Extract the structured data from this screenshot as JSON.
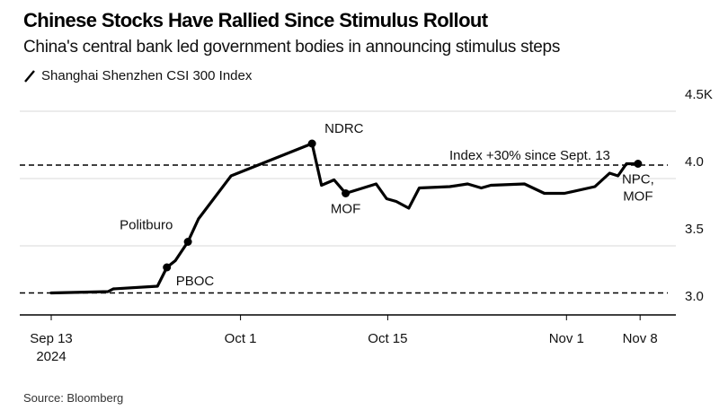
{
  "chart_data": {
    "type": "line",
    "title": "Chinese Stocks Have Rallied Since Stimulus Rollout",
    "subtitle": "China's central bank led government bodies in announcing stimulus steps",
    "legend": [
      {
        "name": "Shanghai Shenzhen CSI 300 Index",
        "marker": "line",
        "placement": "top-left"
      }
    ],
    "xlabel": "",
    "ylabel": "",
    "y_unit": "thousands",
    "ylim": [
      2.93,
      4.5
    ],
    "y_ticks": [
      {
        "value": 4.5,
        "label": "4.5K"
      },
      {
        "value": 4.0,
        "label": "4.0"
      },
      {
        "value": 3.5,
        "label": "3.5"
      },
      {
        "value": 3.0,
        "label": "3.0"
      }
    ],
    "xlim_days": [
      -3,
      59
    ],
    "x_ticks": [
      {
        "day": 0,
        "label": "Sep 13",
        "sublabel": "2024"
      },
      {
        "day": 18,
        "label": "Oct 1"
      },
      {
        "day": 32,
        "label": "Oct 15"
      },
      {
        "day": 49,
        "label": "Nov 1"
      },
      {
        "day": 56,
        "label": "Nov 8"
      }
    ],
    "grid": true,
    "series": [
      {
        "name": "Shanghai Shenzhen CSI 300 Index",
        "color": "#000000",
        "points": [
          {
            "day": 0,
            "value": 3.15
          },
          {
            "day": 5.4,
            "value": 3.16
          },
          {
            "day": 5.9,
            "value": 3.18
          },
          {
            "day": 10.1,
            "value": 3.2
          },
          {
            "day": 11,
            "value": 3.34
          },
          {
            "day": 11.8,
            "value": 3.39
          },
          {
            "day": 13,
            "value": 3.53
          },
          {
            "day": 14,
            "value": 3.7
          },
          {
            "day": 17.1,
            "value": 4.02
          },
          {
            "day": 24.8,
            "value": 4.26
          },
          {
            "day": 25.7,
            "value": 3.95
          },
          {
            "day": 26.9,
            "value": 3.99
          },
          {
            "day": 28,
            "value": 3.89
          },
          {
            "day": 30.9,
            "value": 3.96
          },
          {
            "day": 31.9,
            "value": 3.85
          },
          {
            "day": 32.8,
            "value": 3.83
          },
          {
            "day": 34,
            "value": 3.78
          },
          {
            "day": 35,
            "value": 3.93
          },
          {
            "day": 37.9,
            "value": 3.94
          },
          {
            "day": 39.6,
            "value": 3.96
          },
          {
            "day": 40.9,
            "value": 3.93
          },
          {
            "day": 41.8,
            "value": 3.95
          },
          {
            "day": 45,
            "value": 3.96
          },
          {
            "day": 46.9,
            "value": 3.89
          },
          {
            "day": 48.8,
            "value": 3.89
          },
          {
            "day": 51.7,
            "value": 3.94
          },
          {
            "day": 53.1,
            "value": 4.04
          },
          {
            "day": 53.9,
            "value": 4.02
          },
          {
            "day": 54.7,
            "value": 4.11
          },
          {
            "day": 55.8,
            "value": 4.11
          }
        ]
      }
    ],
    "reference_lines": [
      {
        "value": 4.1,
        "style": "dashed",
        "label": "Index +30% since Sept. 13"
      },
      {
        "value": 3.15,
        "style": "dashed",
        "label": ""
      }
    ],
    "event_markers": [
      {
        "day": 11,
        "value": 3.34,
        "label": "PBOC",
        "label_pos": "below-right"
      },
      {
        "day": 13,
        "value": 3.53,
        "label": "Politburo",
        "label_pos": "above-left"
      },
      {
        "day": 24.8,
        "value": 4.26,
        "label": "NDRC",
        "label_pos": "above-right"
      },
      {
        "day": 28,
        "value": 3.89,
        "label": "MOF",
        "label_pos": "below"
      },
      {
        "day": 55.8,
        "value": 4.11,
        "label": "NPC,\nMOF",
        "label_pos": "below"
      }
    ]
  },
  "legend_label": "Shanghai Shenzhen CSI 300 Index",
  "source": "Source: Bloomberg"
}
